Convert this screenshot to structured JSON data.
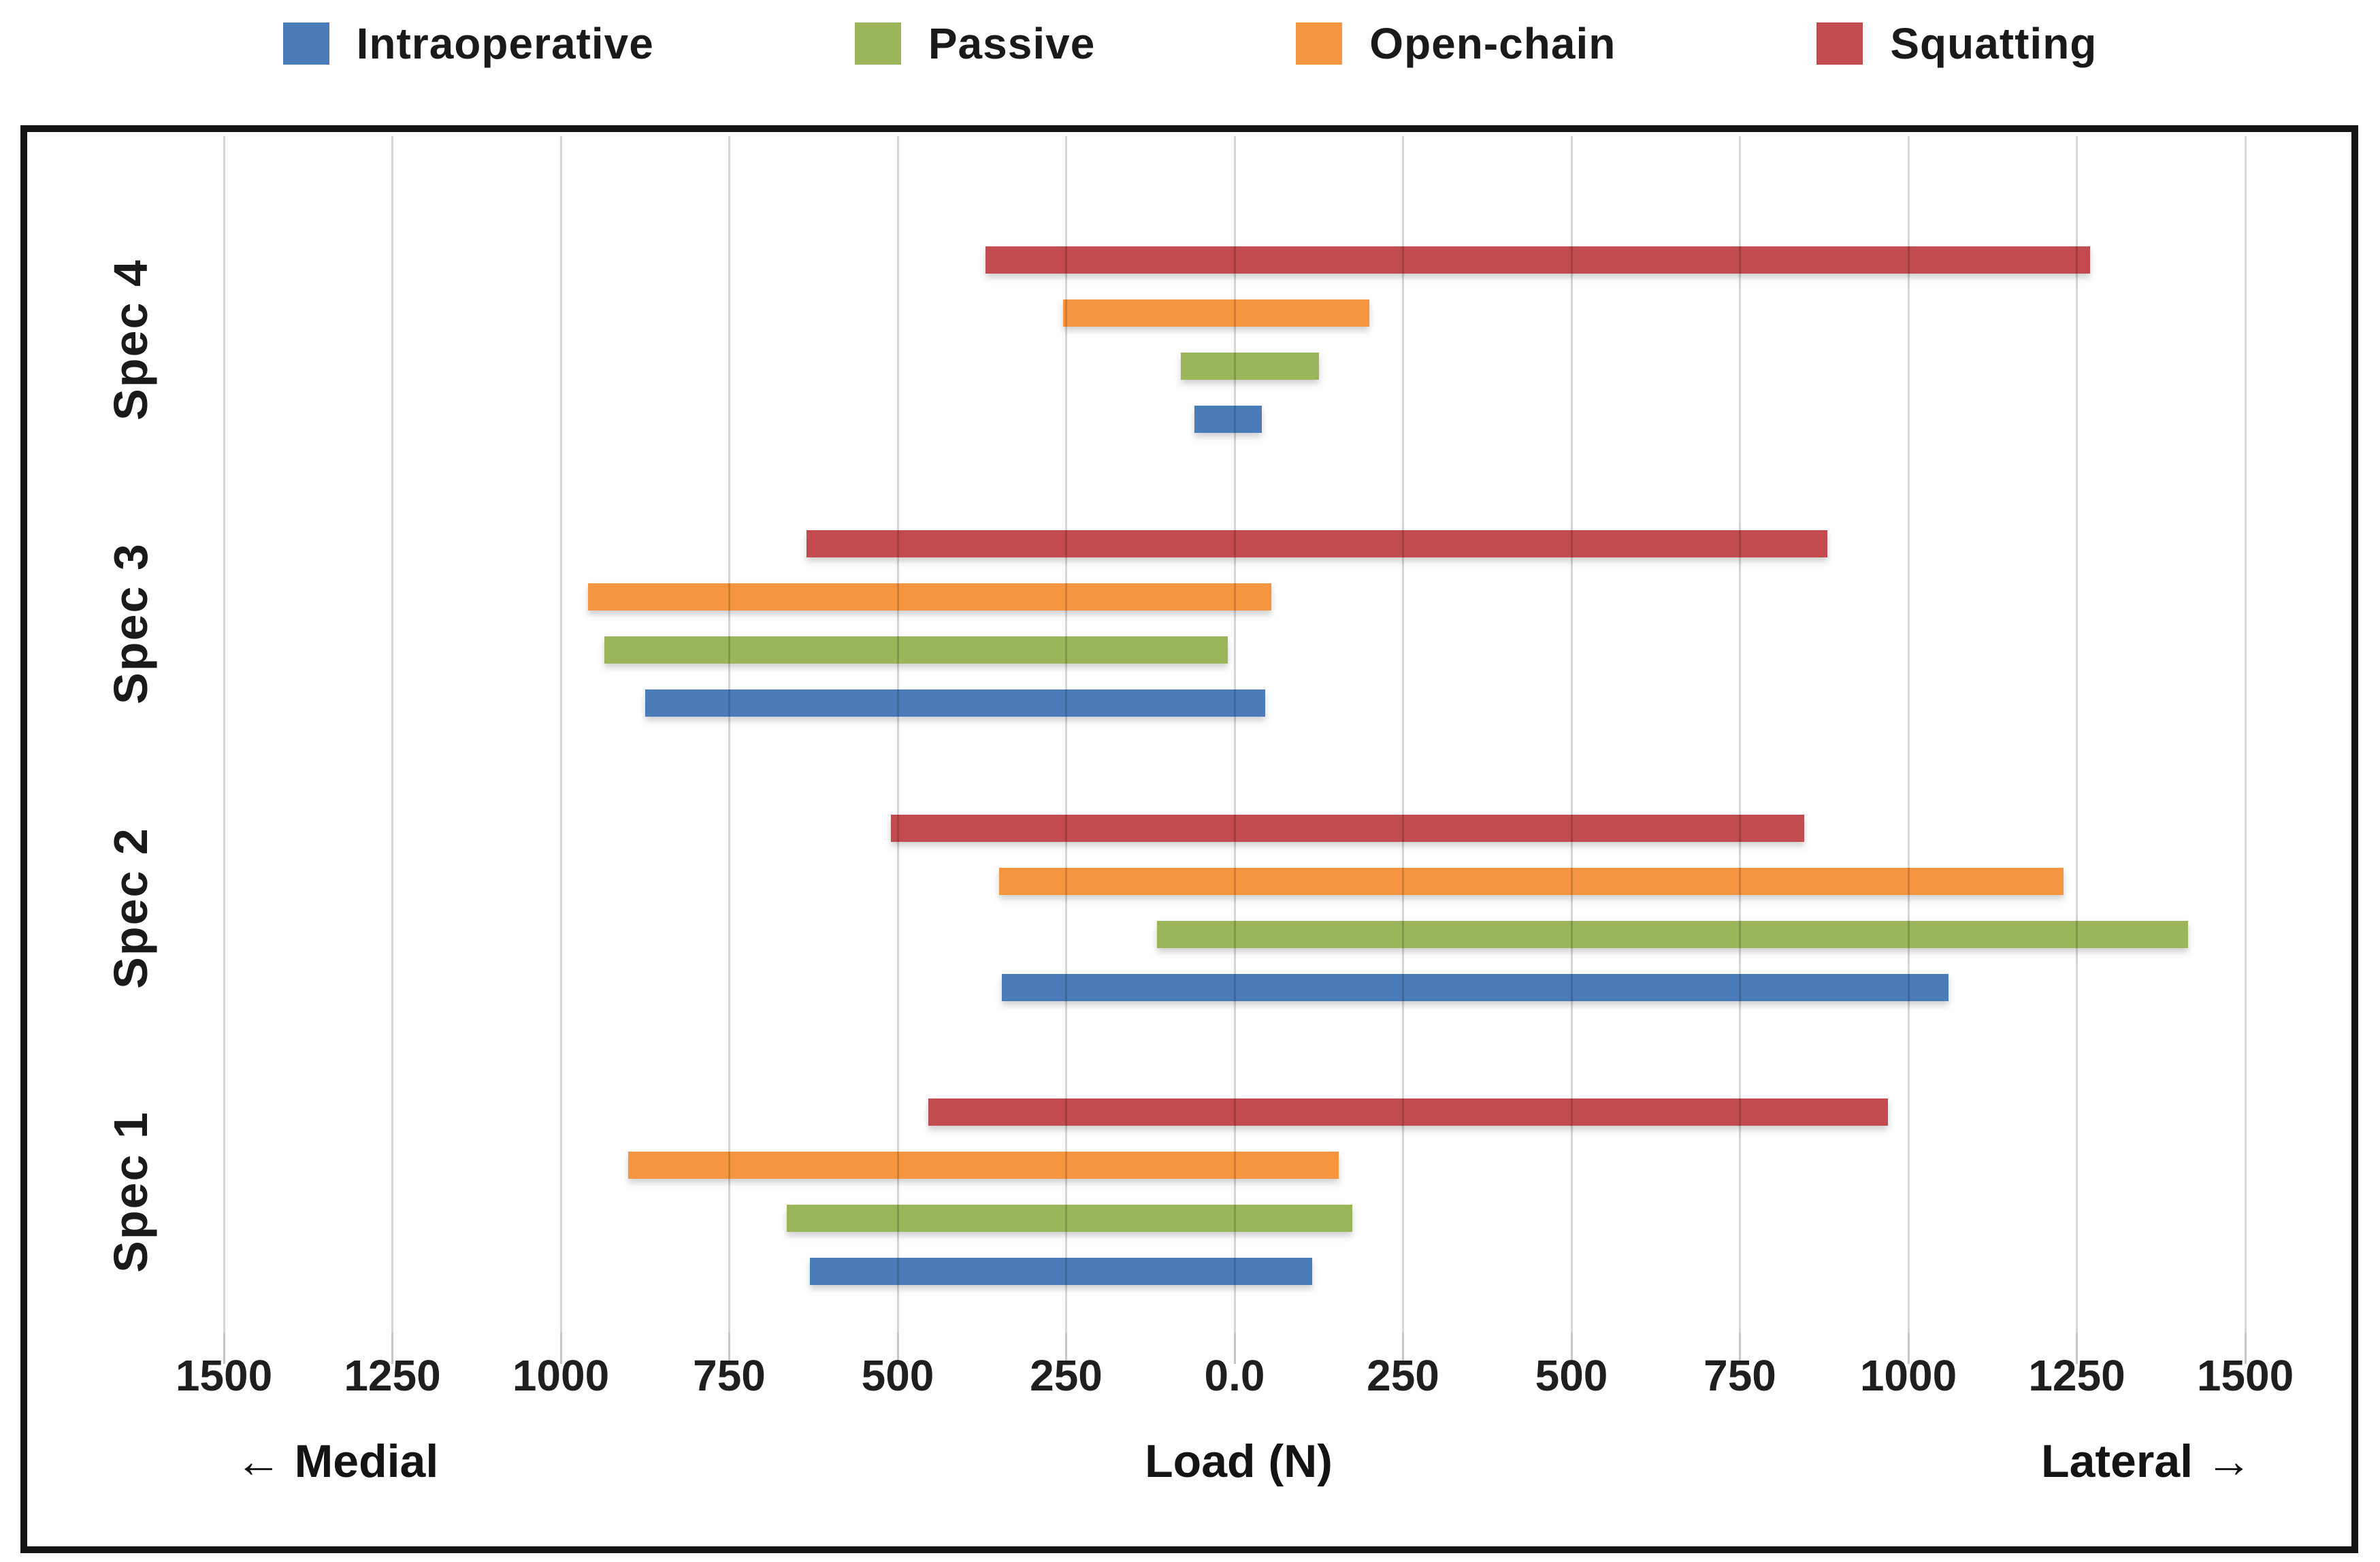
{
  "legend": {
    "items": [
      {
        "series": "Intraoperative",
        "label": "Intraoperative"
      },
      {
        "series": "Passive",
        "label": "Passive"
      },
      {
        "series": "Open-chain",
        "label": "Open-chain"
      },
      {
        "series": "Squatting",
        "label": "Squatting"
      }
    ]
  },
  "chart_data": {
    "type": "bar",
    "orientation": "horizontal-diverging",
    "xlabel": "Load (N)",
    "x_axis": {
      "min": -1500,
      "max": 1500,
      "tick_step": 250,
      "left_direction_label": "← Medial",
      "center_label": "Load (N)",
      "right_direction_label": "Lateral →",
      "ticks": [
        {
          "value": -1500,
          "label": "1500"
        },
        {
          "value": -1250,
          "label": "1250"
        },
        {
          "value": -1000,
          "label": "1000"
        },
        {
          "value": -750,
          "label": "750"
        },
        {
          "value": -500,
          "label": "500"
        },
        {
          "value": -250,
          "label": "250"
        },
        {
          "value": 0,
          "label": "0.0"
        },
        {
          "value": 250,
          "label": "250"
        },
        {
          "value": 500,
          "label": "500"
        },
        {
          "value": 750,
          "label": "750"
        },
        {
          "value": 1000,
          "label": "1000"
        },
        {
          "value": 1250,
          "label": "1250"
        },
        {
          "value": 1500,
          "label": "1500"
        }
      ]
    },
    "colors": {
      "Intraoperative": "#4A7CB9",
      "Passive": "#9AB55A",
      "Open-chain": "#F6953F",
      "Squatting": "#C14B4E"
    },
    "grid_color": "#d6d6d6",
    "legend_order": [
      "Intraoperative",
      "Passive",
      "Open-chain",
      "Squatting"
    ],
    "bar_order_top_to_bottom": [
      "Squatting",
      "Open-chain",
      "Passive",
      "Intraoperative"
    ],
    "units": "N",
    "groups": [
      {
        "label": "Spec 4",
        "bars": [
          {
            "series": "Squatting",
            "medial": 370,
            "lateral": 1270
          },
          {
            "series": "Open-chain",
            "medial": 255,
            "lateral": 200
          },
          {
            "series": "Passive",
            "medial": 80,
            "lateral": 125
          },
          {
            "series": "Intraoperative",
            "medial": 60,
            "lateral": 40
          }
        ]
      },
      {
        "label": "Spec 3",
        "bars": [
          {
            "series": "Squatting",
            "medial": 635,
            "lateral": 880
          },
          {
            "series": "Open-chain",
            "medial": 960,
            "lateral": 55
          },
          {
            "series": "Passive",
            "medial": 935,
            "lateral": -10
          },
          {
            "series": "Intraoperative",
            "medial": 875,
            "lateral": 45
          }
        ]
      },
      {
        "label": "Spec 2",
        "bars": [
          {
            "series": "Squatting",
            "medial": 510,
            "lateral": 845
          },
          {
            "series": "Open-chain",
            "medial": 350,
            "lateral": 1230
          },
          {
            "series": "Passive",
            "medial": 115,
            "lateral": 1415
          },
          {
            "series": "Intraoperative",
            "medial": 345,
            "lateral": 1060
          }
        ]
      },
      {
        "label": "Spec 1",
        "bars": [
          {
            "series": "Squatting",
            "medial": 455,
            "lateral": 970
          },
          {
            "series": "Open-chain",
            "medial": 900,
            "lateral": 155
          },
          {
            "series": "Passive",
            "medial": 665,
            "lateral": 175
          },
          {
            "series": "Intraoperative",
            "medial": 630,
            "lateral": 115
          }
        ]
      }
    ]
  }
}
